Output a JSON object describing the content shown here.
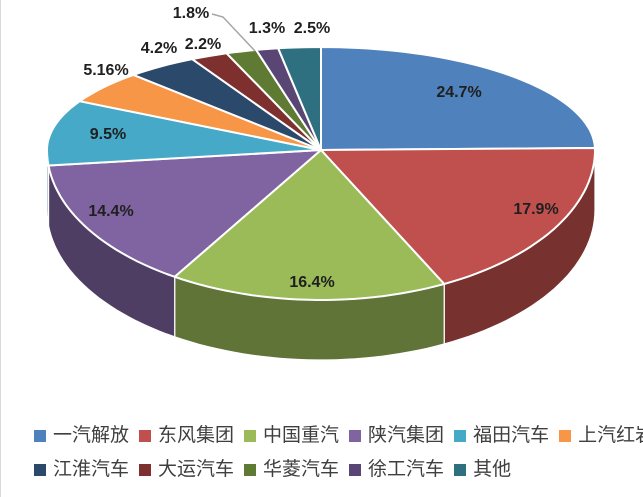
{
  "chart_data": {
    "type": "pie",
    "style": "3d-pie",
    "title": "",
    "legend_position": "bottom",
    "start_angle": "top",
    "direction": "clockwise",
    "legend_row_break": 6,
    "series": [
      {
        "label": "一汽解放",
        "value": 24.7,
        "display": "24.7%",
        "color": "#4F81BD"
      },
      {
        "label": "东风集团",
        "value": 17.9,
        "display": "17.9%",
        "color": "#C0504D"
      },
      {
        "label": "中国重汽",
        "value": 16.4,
        "display": "16.4%",
        "color": "#9BBB59"
      },
      {
        "label": "陕汽集团",
        "value": 14.4,
        "display": "14.4%",
        "color": "#8064A2"
      },
      {
        "label": "福田汽车",
        "value": 9.5,
        "display": "9.5%",
        "color": "#45A9C7"
      },
      {
        "label": "上汽红岩",
        "value": 5.16,
        "display": "5.16%",
        "color": "#F79646"
      },
      {
        "label": "江淮汽车",
        "value": 4.2,
        "display": "4.2%",
        "color": "#2B4A6B"
      },
      {
        "label": "大运汽车",
        "value": 2.2,
        "display": "2.2%",
        "color": "#7E302E"
      },
      {
        "label": "华菱汽车",
        "value": 1.8,
        "display": "1.8%",
        "color": "#5F7A33"
      },
      {
        "label": "徐工汽车",
        "value": 1.3,
        "display": "1.3%",
        "color": "#5A4675"
      },
      {
        "label": "其他",
        "value": 2.5,
        "display": "2.5%",
        "color": "#2E7080"
      }
    ],
    "label_text_color": "#1f1f1f",
    "leader_line_color": "#a6a6a6",
    "slice_border_color": "#ffffff"
  }
}
